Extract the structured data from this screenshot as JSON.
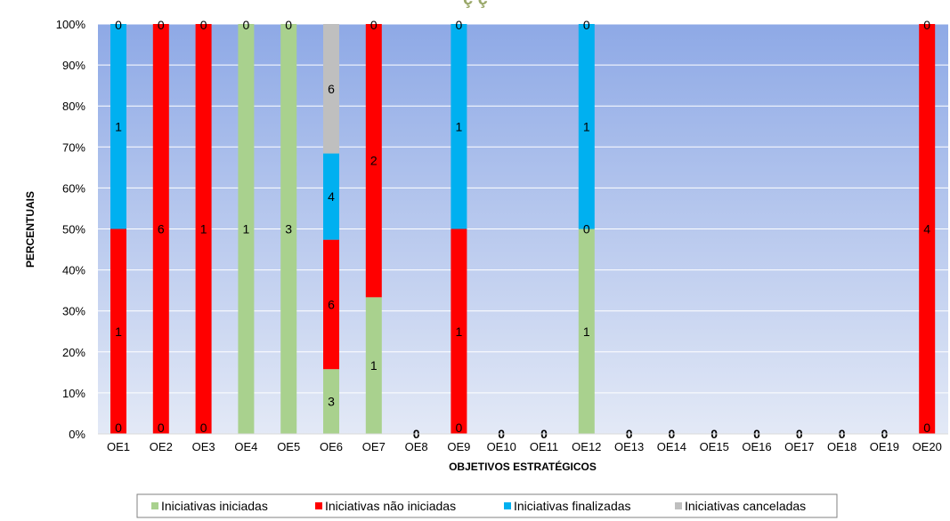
{
  "chart_data": {
    "type": "bar",
    "stacked": true,
    "title": "",
    "xlabel": "OBJETIVOS ESTRATÉGICOS",
    "ylabel": "PERCENTUAIS",
    "ylim": [
      0,
      100
    ],
    "y_ticks": [
      "0%",
      "10%",
      "20%",
      "30%",
      "40%",
      "50%",
      "60%",
      "70%",
      "80%",
      "90%",
      "100%"
    ],
    "legend_position": "bottom",
    "categories": [
      "OE1",
      "OE2",
      "OE3",
      "OE4",
      "OE5",
      "OE6",
      "OE7",
      "OE8",
      "OE9",
      "OE10",
      "OE11",
      "OE12",
      "OE13",
      "OE14",
      "OE15",
      "OE16",
      "OE17",
      "OE18",
      "OE19",
      "OE20"
    ],
    "series": [
      {
        "name": "Iniciativas iniciadas",
        "color": "#a9d18e",
        "values": [
          0,
          0,
          0,
          1,
          3,
          3,
          1,
          0,
          0,
          0,
          0,
          1,
          0,
          0,
          0,
          0,
          0,
          0,
          0,
          0
        ]
      },
      {
        "name": "Iniciativas não iniciadas",
        "color": "#ff0000",
        "values": [
          1,
          6,
          1,
          0,
          0,
          6,
          2,
          0,
          1,
          0,
          0,
          0,
          0,
          0,
          0,
          0,
          0,
          0,
          0,
          4
        ]
      },
      {
        "name": "Iniciativas finalizadas",
        "color": "#00b0f0",
        "values": [
          1,
          0,
          0,
          0,
          0,
          4,
          0,
          0,
          1,
          0,
          0,
          1,
          0,
          0,
          0,
          0,
          0,
          0,
          0,
          0
        ]
      },
      {
        "name": "Iniciativas canceladas",
        "color": "#bfbfbf",
        "values": [
          0,
          0,
          0,
          0,
          0,
          6,
          0,
          0,
          0,
          0,
          0,
          0,
          0,
          0,
          0,
          0,
          0,
          0,
          0,
          0
        ]
      }
    ],
    "data_labels": [
      [
        [
          "0",
          "bottom"
        ],
        [
          "1",
          "series:1"
        ],
        [
          "1",
          "series:2"
        ],
        [
          "0",
          "top"
        ]
      ],
      [
        [
          "0",
          "bottom"
        ],
        [
          "6",
          "series:1"
        ],
        [
          "0",
          "top"
        ]
      ],
      [
        [
          "0",
          "bottom"
        ],
        [
          "1",
          "series:1"
        ],
        [
          "0",
          "top"
        ]
      ],
      [
        [
          "1",
          "series:0"
        ],
        [
          "0",
          "top"
        ]
      ],
      [
        [
          "3",
          "series:0"
        ],
        [
          "0",
          "top"
        ]
      ],
      [
        [
          "3",
          "series:0"
        ],
        [
          "6",
          "series:1"
        ],
        [
          "4",
          "series:2"
        ],
        [
          "6",
          "series:3"
        ]
      ],
      [
        [
          "1",
          "series:0"
        ],
        [
          "2",
          "series:1"
        ],
        [
          "0",
          "top"
        ]
      ],
      [
        [
          "0",
          "axis"
        ]
      ],
      [
        [
          "0",
          "bottom"
        ],
        [
          "1",
          "series:1"
        ],
        [
          "1",
          "series:2"
        ],
        [
          "0",
          "top"
        ]
      ],
      [
        [
          "0",
          "axis"
        ]
      ],
      [
        [
          "0",
          "axis"
        ]
      ],
      [
        [
          "1",
          "series:0"
        ],
        [
          "0",
          "mid"
        ],
        [
          "1",
          "series:2"
        ],
        [
          "0",
          "top"
        ]
      ],
      [
        [
          "0",
          "axis"
        ]
      ],
      [
        [
          "0",
          "axis"
        ]
      ],
      [
        [
          "0",
          "axis"
        ]
      ],
      [
        [
          "0",
          "axis"
        ]
      ],
      [
        [
          "0",
          "axis"
        ]
      ],
      [
        [
          "0",
          "axis"
        ]
      ],
      [
        [
          "0",
          "axis"
        ]
      ],
      [
        [
          "0",
          "bottom"
        ],
        [
          "4",
          "series:1"
        ],
        [
          "0",
          "top"
        ]
      ]
    ],
    "grid": true,
    "plot_background": [
      "#8ea9e6",
      "#e3e9f6"
    ]
  }
}
